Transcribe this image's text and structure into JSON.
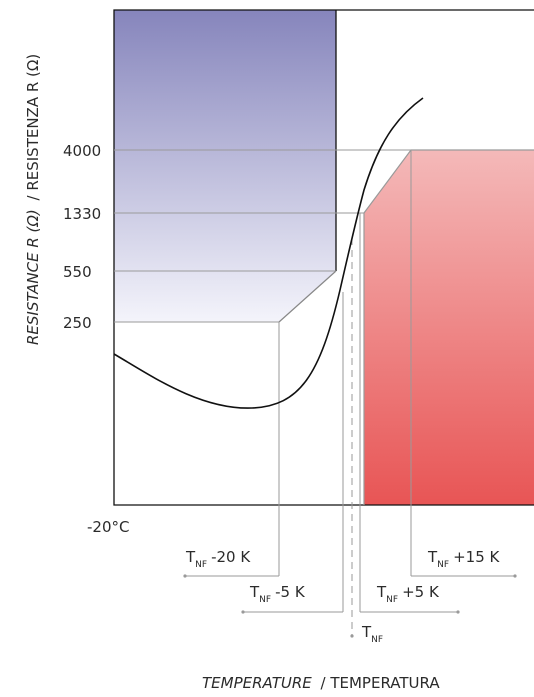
{
  "y_axis": {
    "label_italic": "RESISTANCE R (Ω)",
    "label_regular": "/ RESISTENZA R (Ω)",
    "ticks": [
      "4000",
      "1330",
      "550",
      "250"
    ]
  },
  "x_axis": {
    "start_label": "-20°C",
    "label_italic": "TEMPERATURE",
    "label_regular": "/ TEMPERATURA"
  },
  "markers": [
    {
      "base": "T",
      "sub": "NF",
      "offset": "-20 K"
    },
    {
      "base": "T",
      "sub": "NF",
      "offset": "-5 K"
    },
    {
      "base": "T",
      "sub": "NF",
      "offset": ""
    },
    {
      "base": "T",
      "sub": "NF",
      "offset": "+5 K"
    },
    {
      "base": "T",
      "sub": "NF",
      "offset": "+15 K"
    }
  ],
  "colors": {
    "cold_zone_top": "#8685bc",
    "cold_zone_bottom": "#f4f4fb",
    "hot_zone_top": "#f4b9b9",
    "hot_zone_bottom": "#e85555",
    "curve": "#111111",
    "guide": "#9a9a9a"
  }
}
